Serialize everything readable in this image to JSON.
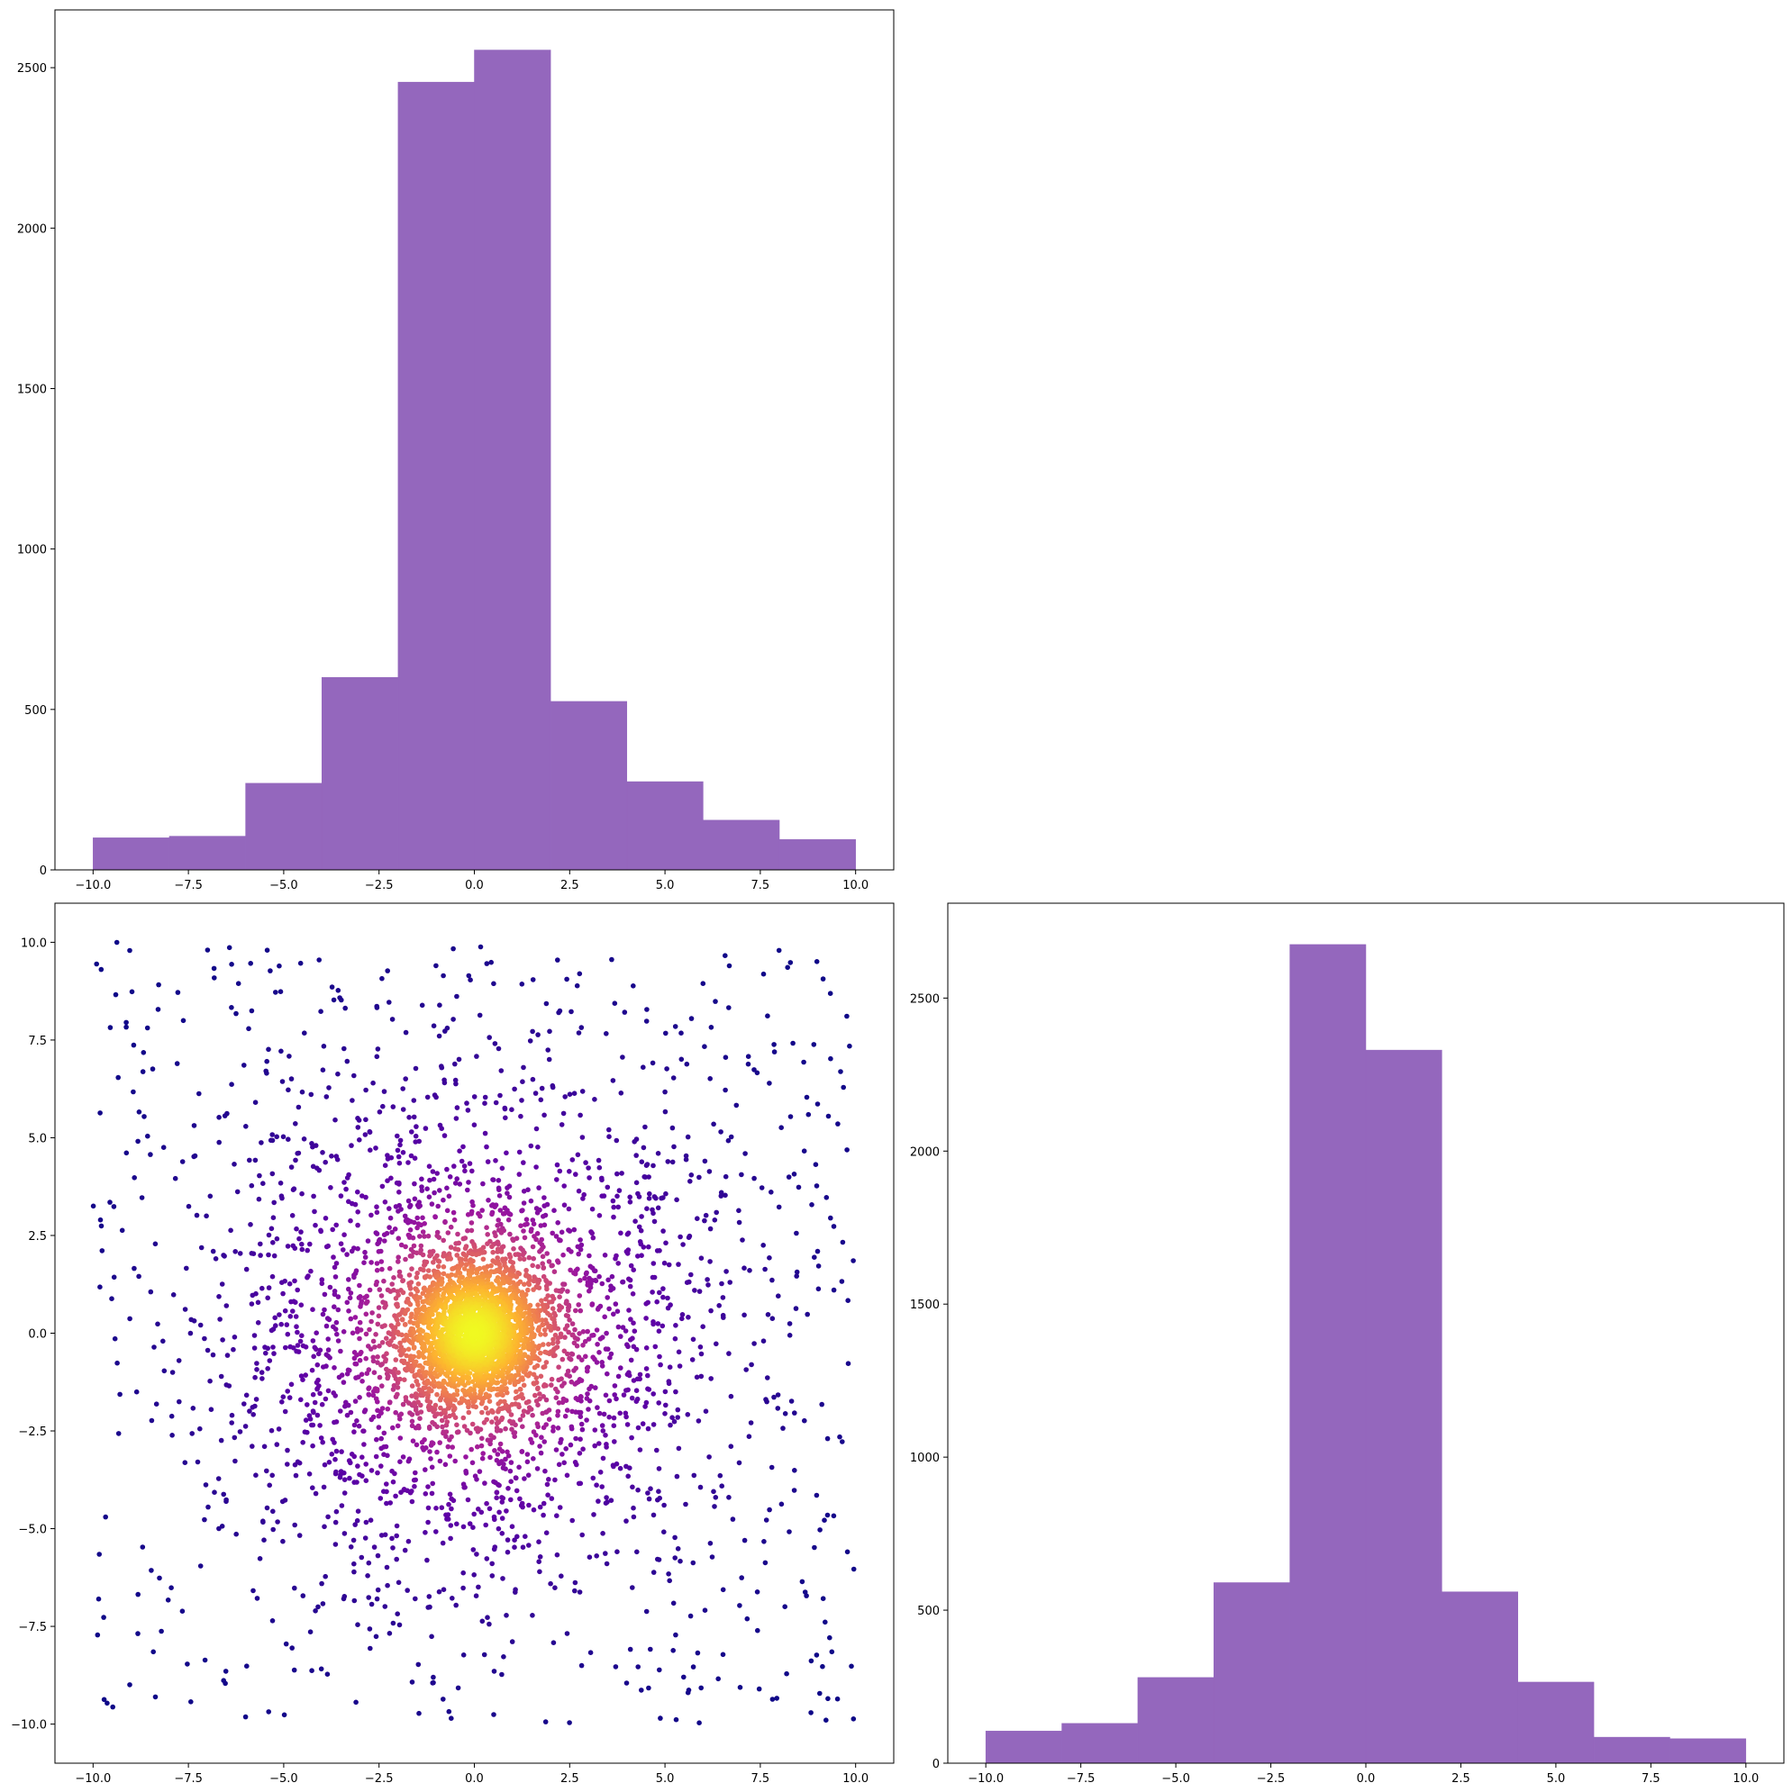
{
  "chart_data": [
    {
      "type": "bar",
      "panel": "top-left",
      "kind": "histogram",
      "bin_edges": [
        -10,
        -8,
        -6,
        -4,
        -2,
        0,
        2,
        4,
        6,
        8,
        10
      ],
      "counts": [
        100,
        105,
        270,
        600,
        2455,
        2555,
        525,
        275,
        155,
        95
      ],
      "bar_color": "#9467bd",
      "xlim": [
        -11,
        11
      ],
      "ylim": [
        0,
        2680
      ],
      "xticks": [
        -10.0,
        -7.5,
        -5.0,
        -2.5,
        0.0,
        2.5,
        5.0,
        7.5,
        10.0
      ],
      "yticks": [
        0,
        500,
        1000,
        1500,
        2000,
        2500
      ],
      "xtick_labels": [
        "−10.0",
        "−7.5",
        "−5.0",
        "−2.5",
        "0.0",
        "2.5",
        "5.0",
        "7.5",
        "10.0"
      ],
      "ytick_labels": [
        "0",
        "500",
        "1000",
        "1500",
        "2000",
        "2500"
      ],
      "grid": false,
      "title": "",
      "xlabel": "",
      "ylabel": ""
    },
    {
      "type": "scatter",
      "panel": "bottom-left",
      "n_points": 5000,
      "distribution": "radially concentrated at origin; points colored by density",
      "colormap": "plasma",
      "colormap_stops": [
        "#0d0887",
        "#5c01a6",
        "#9c179e",
        "#cc4778",
        "#ed7953",
        "#fdb42f",
        "#f0f921"
      ],
      "xlim": [
        -11,
        11
      ],
      "ylim": [
        -11,
        11
      ],
      "xticks": [
        -10.0,
        -7.5,
        -5.0,
        -2.5,
        0.0,
        2.5,
        5.0,
        7.5,
        10.0
      ],
      "yticks": [
        -10.0,
        -7.5,
        -5.0,
        -2.5,
        0.0,
        2.5,
        5.0,
        7.5,
        10.0
      ],
      "xtick_labels": [
        "−10.0",
        "−7.5",
        "−5.0",
        "−2.5",
        "0.0",
        "2.5",
        "5.0",
        "7.5",
        "10.0"
      ],
      "ytick_labels": [
        "−10.0",
        "−7.5",
        "−5.0",
        "−2.5",
        "0.0",
        "2.5",
        "5.0",
        "7.5",
        "10.0"
      ],
      "grid": false,
      "title": "",
      "xlabel": "",
      "ylabel": ""
    },
    {
      "type": "bar",
      "panel": "bottom-right",
      "kind": "histogram",
      "bin_edges": [
        -10,
        -8,
        -6,
        -4,
        -2,
        0,
        2,
        4,
        6,
        8,
        10
      ],
      "counts": [
        105,
        130,
        280,
        590,
        2675,
        2330,
        560,
        265,
        85,
        80
      ],
      "bar_color": "#9467bd",
      "xlim": [
        -11,
        11
      ],
      "ylim": [
        0,
        2810
      ],
      "xticks": [
        -10.0,
        -7.5,
        -5.0,
        -2.5,
        0.0,
        2.5,
        5.0,
        7.5,
        10.0
      ],
      "yticks": [
        0,
        500,
        1000,
        1500,
        2000,
        2500
      ],
      "xtick_labels": [
        "−10.0",
        "−7.5",
        "−5.0",
        "−2.5",
        "0.0",
        "2.5",
        "5.0",
        "7.5",
        "10.0"
      ],
      "ytick_labels": [
        "0",
        "500",
        "1000",
        "1500",
        "2000",
        "2500"
      ],
      "grid": false,
      "title": "",
      "xlabel": "",
      "ylabel": ""
    }
  ]
}
